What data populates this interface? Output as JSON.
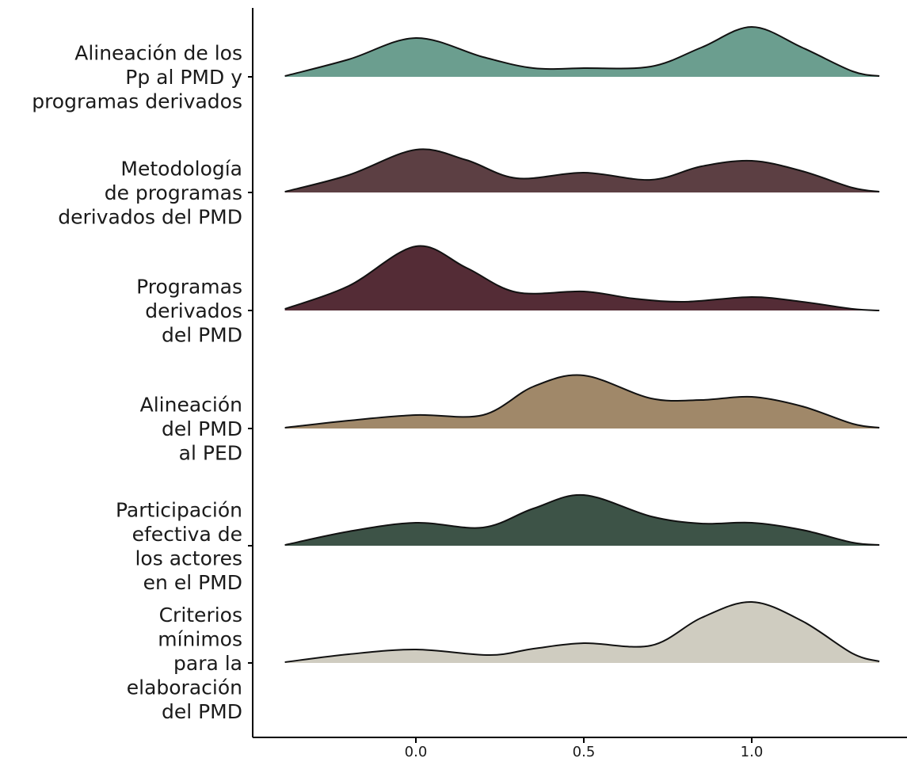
{
  "chart_data": {
    "type": "ridgeline",
    "x_ticks": [
      0.0,
      0.5,
      1.0
    ],
    "x_tick_labels": [
      "0.0",
      "0.5",
      "1.0"
    ],
    "xlim": [
      -0.48,
      1.4
    ],
    "grid": false,
    "legend": "none",
    "series": [
      {
        "name": "Alineación de los Pp al PMD y programas derivados",
        "label_lines": [
          "Alineación de los",
          "Pp al PMD y",
          "programas derivados"
        ],
        "color": "#6b9e8f",
        "x": [
          -0.39,
          -0.2,
          0.0,
          0.2,
          0.35,
          0.5,
          0.7,
          0.85,
          1.0,
          1.15,
          1.3,
          1.38
        ],
        "density": [
          0.01,
          0.22,
          0.49,
          0.25,
          0.11,
          0.11,
          0.13,
          0.37,
          0.63,
          0.37,
          0.07,
          0.01
        ]
      },
      {
        "name": "Metodología de programas derivados del PMD",
        "label_lines": [
          "Metodología",
          "de programas",
          "derivados del PMD"
        ],
        "color": "#5c3f43",
        "x": [
          -0.39,
          -0.2,
          0.0,
          0.15,
          0.3,
          0.5,
          0.7,
          0.85,
          1.0,
          1.15,
          1.3,
          1.38
        ],
        "density": [
          0.01,
          0.22,
          0.54,
          0.41,
          0.18,
          0.25,
          0.16,
          0.33,
          0.4,
          0.27,
          0.06,
          0.01
        ]
      },
      {
        "name": "Programas derivados del PMD",
        "label_lines": [
          "Programas",
          "derivados",
          "del PMD"
        ],
        "color": "#542c36",
        "x": [
          -0.39,
          -0.2,
          0.0,
          0.15,
          0.3,
          0.5,
          0.65,
          0.8,
          1.0,
          1.15,
          1.3,
          1.38
        ],
        "density": [
          0.02,
          0.31,
          0.81,
          0.54,
          0.23,
          0.24,
          0.15,
          0.11,
          0.17,
          0.11,
          0.02,
          0.0
        ]
      },
      {
        "name": "Alineación del PMD al PED",
        "label_lines": [
          "Alineación",
          "del PMD",
          "al PED"
        ],
        "color": "#a08869",
        "x": [
          -0.39,
          -0.2,
          0.0,
          0.2,
          0.35,
          0.5,
          0.7,
          0.85,
          1.0,
          1.15,
          1.3,
          1.38
        ],
        "density": [
          0.01,
          0.1,
          0.17,
          0.17,
          0.53,
          0.67,
          0.38,
          0.36,
          0.4,
          0.28,
          0.06,
          0.01
        ]
      },
      {
        "name": "Participación efectiva de los actores en el PMD",
        "label_lines": [
          "Participación",
          "efectiva de",
          "los actores",
          "en el PMD"
        ],
        "color": "#3d5347",
        "x": [
          -0.39,
          -0.2,
          0.0,
          0.2,
          0.35,
          0.5,
          0.7,
          0.85,
          1.0,
          1.15,
          1.3,
          1.38
        ],
        "density": [
          0.01,
          0.18,
          0.29,
          0.23,
          0.47,
          0.64,
          0.37,
          0.28,
          0.29,
          0.2,
          0.04,
          0.01
        ]
      },
      {
        "name": "Criterios mínimos para la elaboración del PMD",
        "label_lines": [
          "Criterios",
          "mínimos",
          "para la",
          "elaboración",
          "del PMD"
        ],
        "color": "#cfccc0",
        "x": [
          -0.39,
          -0.2,
          0.0,
          0.22,
          0.35,
          0.5,
          0.7,
          0.85,
          1.0,
          1.15,
          1.3,
          1.38
        ],
        "density": [
          0.01,
          0.11,
          0.17,
          0.1,
          0.18,
          0.25,
          0.22,
          0.57,
          0.77,
          0.53,
          0.12,
          0.02
        ]
      }
    ]
  }
}
